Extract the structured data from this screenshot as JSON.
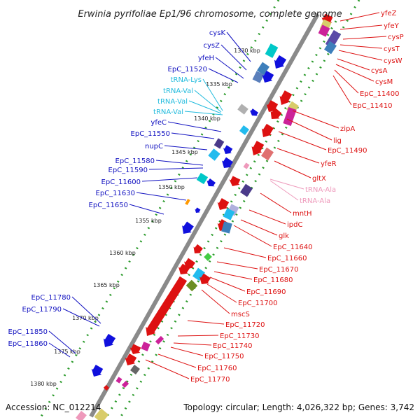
{
  "title": "Erwinia pyrifoliae Ep1/96 chromosome, complete genome",
  "footer": {
    "accession": "Accession: NC_012214",
    "summary": "Topology: circular; Length: 4,026,322 bp; Genes: 3,742"
  },
  "kbp_ticks": [
    "1330 kbp",
    "1335 kbp",
    "1340 kbp",
    "1345 kbp",
    "1350 kbp",
    "1355 kbp",
    "1360 kbp",
    "1365 kbp",
    "1370 kbp",
    "1375 kbp",
    "1380 kbp"
  ],
  "left_labels": [
    {
      "text": "cysK",
      "color": "#1010c0"
    },
    {
      "text": "cysZ",
      "color": "#1010c0"
    },
    {
      "text": "yfeH",
      "color": "#1010c0"
    },
    {
      "text": "EpC_11520",
      "color": "#1010c0"
    },
    {
      "text": "tRNA-Lys",
      "color": "#22bbdd"
    },
    {
      "text": "tRNA-Val",
      "color": "#22bbdd"
    },
    {
      "text": "tRNA-Val",
      "color": "#22bbdd"
    },
    {
      "text": "tRNA-Val",
      "color": "#22bbdd"
    },
    {
      "text": "yfeC",
      "color": "#1010c0"
    },
    {
      "text": "EpC_11550",
      "color": "#1010c0"
    },
    {
      "text": "nupC",
      "color": "#1010c0"
    },
    {
      "text": "EpC_11580",
      "color": "#1010c0"
    },
    {
      "text": "EpC_11590",
      "color": "#1010c0"
    },
    {
      "text": "EpC_11600",
      "color": "#1010c0"
    },
    {
      "text": "EpC_11630",
      "color": "#1010c0"
    },
    {
      "text": "EpC_11650",
      "color": "#1010c0"
    },
    {
      "text": "EpC_11780",
      "color": "#1010c0"
    },
    {
      "text": "EpC_11790",
      "color": "#1010c0"
    },
    {
      "text": "EpC_11850",
      "color": "#1010c0"
    },
    {
      "text": "EpC_11860",
      "color": "#1010c0"
    }
  ],
  "right_labels": [
    {
      "text": "yfeZ",
      "color": "#dd1111"
    },
    {
      "text": "yfeY",
      "color": "#dd1111"
    },
    {
      "text": "cysP",
      "color": "#dd1111"
    },
    {
      "text": "cysT",
      "color": "#dd1111"
    },
    {
      "text": "cysW",
      "color": "#dd1111"
    },
    {
      "text": "cysA",
      "color": "#dd1111"
    },
    {
      "text": "cysM",
      "color": "#dd1111"
    },
    {
      "text": "EpC_11400",
      "color": "#dd1111"
    },
    {
      "text": "EpC_11410",
      "color": "#dd1111"
    },
    {
      "text": "zipA",
      "color": "#dd1111"
    },
    {
      "text": "lig",
      "color": "#dd1111"
    },
    {
      "text": "EpC_11490",
      "color": "#dd1111"
    },
    {
      "text": "yfeR",
      "color": "#dd1111"
    },
    {
      "text": "gltX",
      "color": "#dd1111"
    },
    {
      "text": "tRNA-Ala",
      "color": "#ee99bb"
    },
    {
      "text": "tRNA-Ala",
      "color": "#ee99bb"
    },
    {
      "text": "mntH",
      "color": "#dd1111"
    },
    {
      "text": "ipdC",
      "color": "#dd1111"
    },
    {
      "text": "glk",
      "color": "#dd1111"
    },
    {
      "text": "EpC_11640",
      "color": "#dd1111"
    },
    {
      "text": "EpC_11660",
      "color": "#dd1111"
    },
    {
      "text": "EpC_11670",
      "color": "#dd1111"
    },
    {
      "text": "EpC_11680",
      "color": "#dd1111"
    },
    {
      "text": "EpC_11690",
      "color": "#dd1111"
    },
    {
      "text": "EpC_11700",
      "color": "#dd1111"
    },
    {
      "text": "mscS",
      "color": "#dd1111"
    },
    {
      "text": "EpC_11720",
      "color": "#dd1111"
    },
    {
      "text": "EpC_11730",
      "color": "#dd1111"
    },
    {
      "text": "EpC_11740",
      "color": "#dd1111"
    },
    {
      "text": "EpC_11750",
      "color": "#dd1111"
    },
    {
      "text": "EpC_11760",
      "color": "#dd1111"
    },
    {
      "text": "EpC_11770",
      "color": "#dd1111"
    }
  ]
}
